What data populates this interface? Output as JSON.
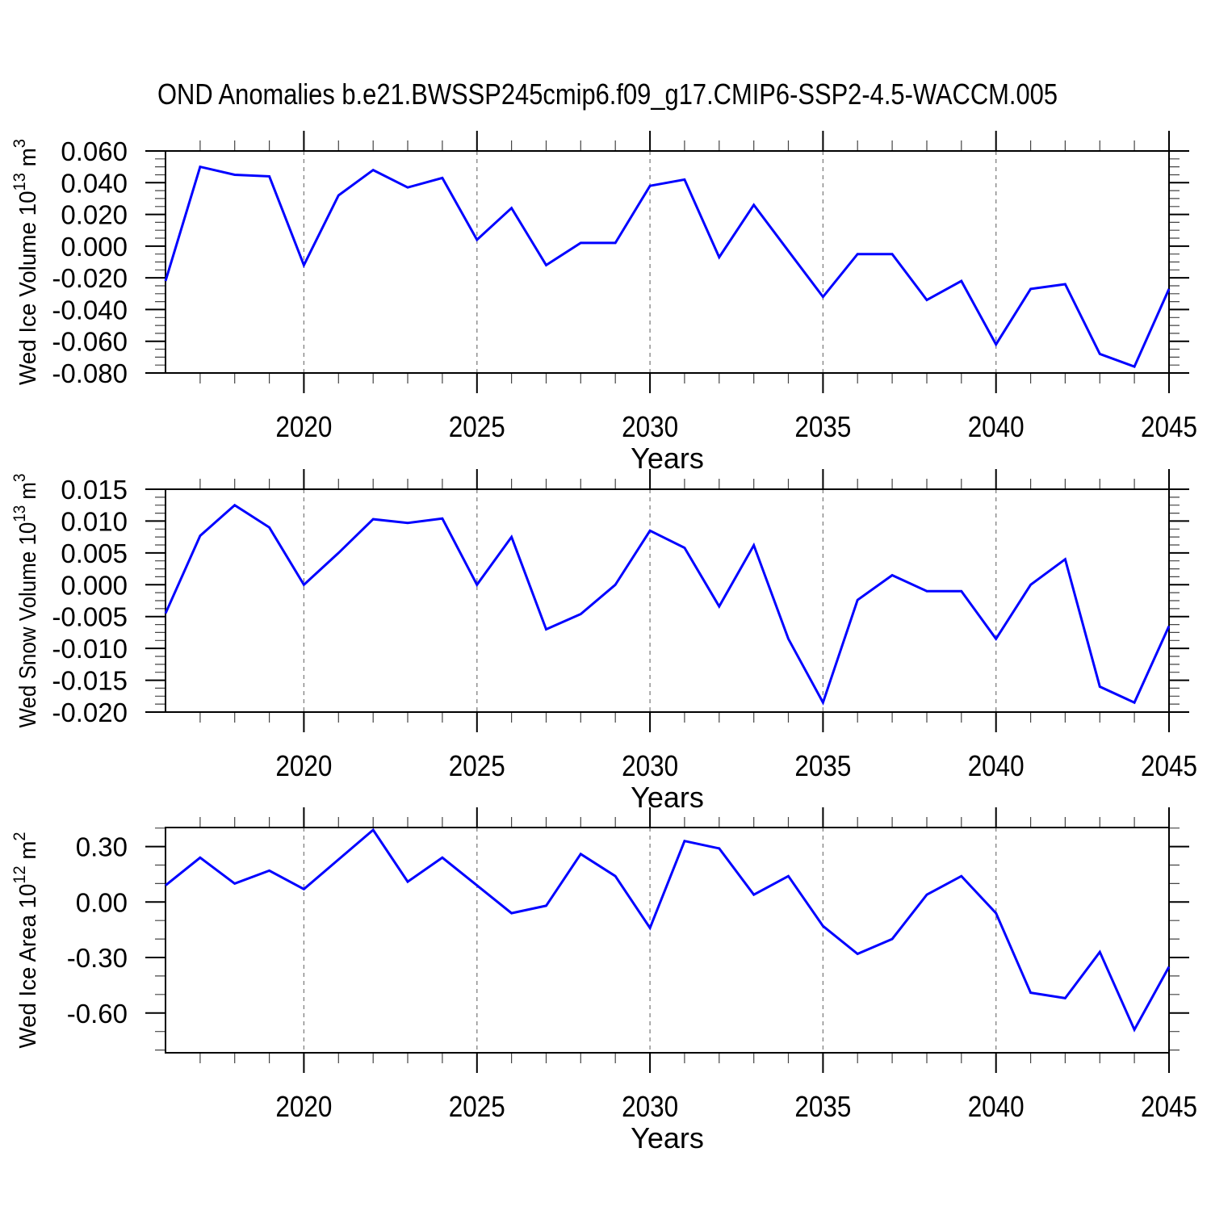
{
  "title": "OND Anomalies b.e21.BWSSP245cmip6.f09_g17.CMIP6-SSP2-4.5-WACCM.005",
  "xlabel": "Years",
  "colors": {
    "line": "#0000ff",
    "grid": "#808080",
    "axis": "#000000",
    "minor_tick": "#444444"
  },
  "years": [
    2016,
    2017,
    2018,
    2019,
    2020,
    2021,
    2022,
    2023,
    2024,
    2025,
    2026,
    2027,
    2028,
    2029,
    2030,
    2031,
    2032,
    2033,
    2034,
    2035,
    2036,
    2037,
    2038,
    2039,
    2040,
    2041,
    2042,
    2043,
    2044,
    2045
  ],
  "xtick_labels": [
    "2020",
    "2025",
    "2030",
    "2035",
    "2040",
    "2045"
  ],
  "grid_years": [
    2020,
    2025,
    2030,
    2035,
    2040
  ],
  "chart_data": [
    {
      "type": "line",
      "name": "wed-ice-volume",
      "ylabel": "Wed Ice Volume 10^13 m^3",
      "ylabel_parts": [
        {
          "t": "Wed Ice Volume 10"
        },
        {
          "sup": "13"
        },
        {
          "t": " m"
        },
        {
          "sup": "3"
        }
      ],
      "ylim": [
        -0.08,
        0.06
      ],
      "ytick_labels": [
        "0.060",
        "0.040",
        "0.020",
        "0.000",
        "-0.020",
        "-0.040",
        "-0.060",
        "-0.080"
      ],
      "yminor_step": 0.005,
      "values": [
        -0.022,
        0.05,
        0.045,
        0.044,
        -0.012,
        0.032,
        0.048,
        0.037,
        0.043,
        0.004,
        0.024,
        -0.012,
        0.002,
        0.002,
        0.038,
        0.042,
        -0.007,
        0.026,
        -0.003,
        -0.032,
        -0.005,
        -0.005,
        -0.034,
        -0.022,
        -0.062,
        -0.027,
        -0.024,
        -0.068,
        -0.076,
        -0.027
      ]
    },
    {
      "type": "line",
      "name": "wed-snow-volume",
      "ylabel": "Wed Snow Volume 10^13 m^3",
      "ylabel_parts": [
        {
          "t": "Wed Snow Volume 10"
        },
        {
          "sup": "13"
        },
        {
          "t": " m"
        },
        {
          "sup": "3"
        }
      ],
      "ylim": [
        -0.02,
        0.015
      ],
      "ytick_labels": [
        "0.015",
        "0.010",
        "0.005",
        "0.000",
        "-0.005",
        "-0.010",
        "-0.015",
        "-0.020"
      ],
      "yminor_step": 0.00125,
      "values": [
        -0.0045,
        0.0077,
        0.0125,
        0.009,
        0.0,
        0.005,
        0.0103,
        0.0097,
        0.0104,
        0.0,
        0.0075,
        -0.007,
        -0.0046,
        0.0,
        0.0085,
        0.0058,
        -0.0034,
        0.0062,
        -0.0085,
        -0.0185,
        -0.0024,
        0.0015,
        -0.001,
        -0.001,
        -0.0085,
        0.0,
        0.004,
        -0.016,
        -0.0185,
        -0.0065
      ]
    },
    {
      "type": "line",
      "name": "wed-ice-area",
      "ylabel": "Wed Ice Area 10^12 m^2",
      "ylabel_parts": [
        {
          "t": "Wed Ice Area 10"
        },
        {
          "sup": "12"
        },
        {
          "t": " m"
        },
        {
          "sup": "2"
        }
      ],
      "ylim": [
        -0.815,
        0.403
      ],
      "ytick_labels": [
        "0.30",
        "0.00",
        "-0.30",
        "-0.60"
      ],
      "yminor_step": 0.1,
      "values": [
        0.09,
        0.24,
        0.1,
        0.17,
        0.07,
        0.23,
        0.39,
        0.11,
        0.24,
        0.09,
        -0.06,
        -0.02,
        0.26,
        0.14,
        -0.14,
        0.33,
        0.29,
        0.04,
        0.14,
        -0.13,
        -0.28,
        -0.2,
        0.04,
        0.14,
        -0.06,
        -0.49,
        -0.52,
        -0.27,
        -0.69,
        -0.35
      ]
    }
  ]
}
